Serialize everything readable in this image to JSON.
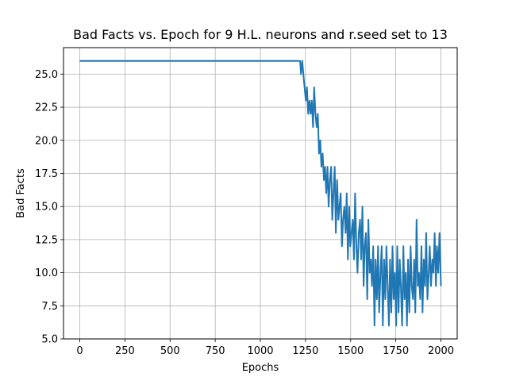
{
  "chart_data": {
    "type": "line",
    "title": "Bad Facts vs. Epoch for 9 H.L. neurons and r.seed set to 13",
    "xlabel": "Epochs",
    "ylabel": "Bad Facts",
    "xlim": [
      -90,
      2090
    ],
    "ylim": [
      5.0,
      27.0
    ],
    "xticks": [
      0,
      250,
      500,
      750,
      1000,
      1250,
      1500,
      1750,
      2000
    ],
    "xtick_labels": [
      "0",
      "250",
      "500",
      "750",
      "1000",
      "1250",
      "1500",
      "1750",
      "2000"
    ],
    "yticks": [
      5.0,
      7.5,
      10.0,
      12.5,
      15.0,
      17.5,
      20.0,
      22.5,
      25.0
    ],
    "ytick_labels": [
      "5.0",
      "7.5",
      "10.0",
      "12.5",
      "15.0",
      "17.5",
      "20.0",
      "22.5",
      "25.0"
    ],
    "grid": true,
    "line_color": "#1f77b4",
    "series": [
      {
        "x": [
          0,
          1220,
          1225,
          1232,
          1238,
          1245,
          1252,
          1258,
          1265,
          1272,
          1278,
          1285,
          1292,
          1298,
          1305,
          1312,
          1318,
          1325,
          1332,
          1338,
          1345,
          1352,
          1358,
          1365,
          1372,
          1378,
          1385,
          1392,
          1398,
          1405,
          1412,
          1418,
          1425,
          1432,
          1438,
          1445,
          1452,
          1458,
          1465,
          1472,
          1478,
          1485,
          1492,
          1498,
          1505,
          1512,
          1518,
          1525,
          1532,
          1538,
          1545,
          1552,
          1558,
          1565,
          1572,
          1578,
          1585,
          1592,
          1598,
          1605,
          1612,
          1618,
          1625,
          1632,
          1638,
          1645,
          1652,
          1658,
          1665,
          1672,
          1678,
          1685,
          1692,
          1698,
          1705,
          1712,
          1718,
          1725,
          1732,
          1738,
          1745,
          1752,
          1758,
          1765,
          1772,
          1778,
          1785,
          1792,
          1798,
          1805,
          1812,
          1818,
          1825,
          1832,
          1838,
          1845,
          1852,
          1858,
          1865,
          1872,
          1878,
          1885,
          1892,
          1898,
          1905,
          1912,
          1918,
          1925,
          1932,
          1938,
          1945,
          1952,
          1958,
          1965,
          1972,
          1978,
          1985,
          1992,
          2000
        ],
        "y": [
          26,
          26,
          25,
          26,
          25,
          24,
          23,
          24,
          22,
          23,
          22,
          23,
          21,
          24,
          22,
          21,
          22,
          19,
          20,
          18,
          19,
          17,
          18,
          16,
          18,
          15,
          17,
          18,
          14,
          16,
          18,
          13,
          17,
          14,
          15,
          16,
          12,
          14,
          15,
          13,
          16,
          11,
          15,
          12,
          13,
          14,
          11,
          16,
          12,
          10,
          13,
          14,
          11,
          15,
          9,
          12,
          13,
          8,
          14,
          10,
          11,
          9,
          12,
          6,
          11,
          8,
          12,
          7,
          10,
          12,
          6,
          11,
          8,
          12,
          9,
          6,
          11,
          7,
          12,
          8,
          10,
          6,
          12,
          7,
          11,
          9,
          6,
          12,
          8,
          10,
          6,
          11,
          7,
          12,
          9,
          8,
          11,
          7,
          14,
          9,
          10,
          8,
          12,
          7,
          11,
          9,
          13,
          8,
          10,
          12,
          9,
          11,
          10,
          13,
          9,
          12,
          10,
          13,
          9
        ]
      }
    ]
  }
}
